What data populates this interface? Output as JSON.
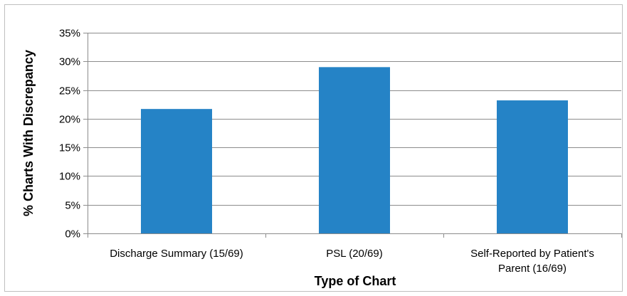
{
  "chart_data": {
    "type": "bar",
    "title": "",
    "xlabel": "Type of Chart",
    "ylabel": "% Charts With Discrepancy",
    "categories": [
      [
        "Discharge Summary (15/69)"
      ],
      [
        "PSL (20/69)"
      ],
      [
        "Self-Reported by Patient's",
        "Parent (16/69)"
      ]
    ],
    "values": [
      21.7,
      29.0,
      23.2
    ],
    "ylim": [
      0,
      35
    ],
    "yticks": [
      0,
      5,
      10,
      15,
      20,
      25,
      30,
      35
    ],
    "ytick_labels": [
      "0%",
      "5%",
      "10%",
      "15%",
      "20%",
      "25%",
      "30%",
      "35%"
    ],
    "grid": true,
    "legend": "none",
    "bar_color": "#2583c6",
    "grid_color": "#8c8c8c"
  }
}
